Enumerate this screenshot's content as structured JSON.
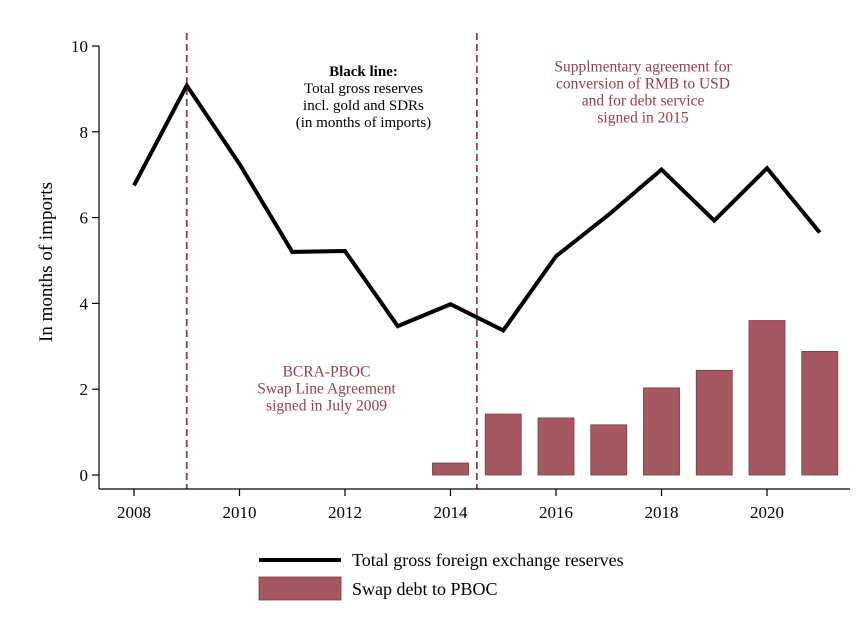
{
  "colors": {
    "line": "#000000",
    "bar": "#a55860",
    "bar_stroke": "#7a3a40",
    "vline": "#9a3d45",
    "annotation": "#9a3d45"
  },
  "chart_data": {
    "type": "bar+line",
    "ylabel": "In months of imports",
    "xlabel": "",
    "xlim": [
      2007.4,
      2021.8
    ],
    "ylim": [
      0,
      10
    ],
    "xticks": [
      2008,
      2010,
      2012,
      2014,
      2016,
      2018,
      2020
    ],
    "yticks": [
      0,
      2,
      4,
      6,
      8,
      10
    ],
    "grid": false,
    "legend_position": "bottom",
    "series": [
      {
        "name": "Total gross foreign exchange reserves",
        "type": "line",
        "color": "#000000",
        "x": [
          2008,
          2009,
          2010,
          2011,
          2012,
          2013,
          2014,
          2015,
          2016,
          2017,
          2018,
          2019,
          2020,
          2021
        ],
        "values": [
          6.75,
          9.08,
          7.25,
          5.2,
          5.22,
          3.47,
          3.98,
          3.37,
          5.1,
          6.07,
          7.12,
          5.93,
          7.15,
          5.65
        ]
      },
      {
        "name": "Swap debt to PBOC",
        "type": "bar",
        "color": "#a55860",
        "x": [
          2014,
          2015,
          2016,
          2017,
          2018,
          2019,
          2020,
          2021
        ],
        "values": [
          0.28,
          1.42,
          1.33,
          1.17,
          2.03,
          2.44,
          3.6,
          2.88
        ]
      }
    ],
    "vlines": [
      2009,
      2014.5
    ],
    "annotations": {
      "black_line": {
        "title": "Black line:",
        "lines": [
          "Total gross reserves",
          "incl. gold and SDRs",
          "(in months of imports)"
        ],
        "x": 2012.35,
        "y": 9.3
      },
      "swap_agreement": {
        "lines": [
          "BCRA-PBOC",
          "Swap Line Agreement",
          "signed in July 2009"
        ],
        "x": 2011.65,
        "y": 2.3
      },
      "supplementary": {
        "lines": [
          "Supplmentary agreement for",
          "conversion of RMB to USD",
          "and for debt service",
          "signed in 2015"
        ],
        "x": 2017.65,
        "y": 9.4
      }
    }
  }
}
